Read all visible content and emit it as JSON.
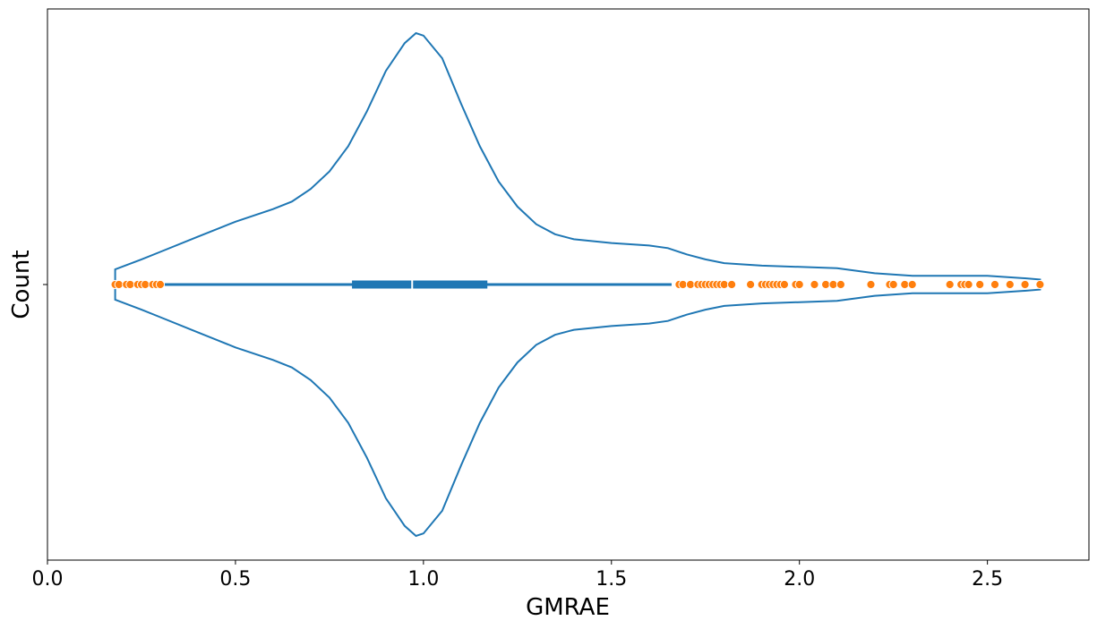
{
  "chart_data": {
    "type": "violin",
    "xlabel": "GMRAE",
    "ylabel": "Count",
    "xlim": [
      0.0,
      2.77
    ],
    "x_ticks": [
      0.0,
      0.5,
      1.0,
      1.5,
      2.0,
      2.5
    ],
    "x_tick_labels": [
      "0.0",
      "0.5",
      "1.0",
      "1.5",
      "2.0",
      "2.5"
    ],
    "grid": false,
    "colors": {
      "violin": "#1f77b4",
      "outliers": "#ff7f0e"
    },
    "violin": {
      "min": 0.18,
      "max": 2.64,
      "q1": 0.81,
      "median": 0.97,
      "q3": 1.17,
      "whisker_low": 0.18,
      "whisker_high": 1.66,
      "density": [
        [
          0.18,
          0.06
        ],
        [
          0.25,
          0.1
        ],
        [
          0.3,
          0.13
        ],
        [
          0.4,
          0.19
        ],
        [
          0.5,
          0.25
        ],
        [
          0.6,
          0.3
        ],
        [
          0.65,
          0.33
        ],
        [
          0.7,
          0.38
        ],
        [
          0.75,
          0.45
        ],
        [
          0.8,
          0.55
        ],
        [
          0.85,
          0.69
        ],
        [
          0.9,
          0.85
        ],
        [
          0.95,
          0.96
        ],
        [
          0.98,
          1.0
        ],
        [
          1.0,
          0.99
        ],
        [
          1.05,
          0.9
        ],
        [
          1.1,
          0.72
        ],
        [
          1.15,
          0.55
        ],
        [
          1.2,
          0.41
        ],
        [
          1.25,
          0.31
        ],
        [
          1.3,
          0.24
        ],
        [
          1.35,
          0.2
        ],
        [
          1.4,
          0.18
        ],
        [
          1.5,
          0.165
        ],
        [
          1.6,
          0.155
        ],
        [
          1.65,
          0.145
        ],
        [
          1.7,
          0.12
        ],
        [
          1.75,
          0.1
        ],
        [
          1.8,
          0.085
        ],
        [
          1.9,
          0.075
        ],
        [
          2.0,
          0.07
        ],
        [
          2.1,
          0.065
        ],
        [
          2.2,
          0.045
        ],
        [
          2.3,
          0.035
        ],
        [
          2.4,
          0.035
        ],
        [
          2.5,
          0.035
        ],
        [
          2.6,
          0.025
        ],
        [
          2.64,
          0.02
        ]
      ]
    },
    "outliers": [
      0.18,
      0.19,
      0.21,
      0.22,
      0.24,
      0.25,
      0.26,
      0.28,
      0.29,
      0.3,
      1.68,
      1.69,
      1.71,
      1.73,
      1.74,
      1.75,
      1.76,
      1.77,
      1.78,
      1.79,
      1.8,
      1.82,
      1.87,
      1.9,
      1.91,
      1.92,
      1.93,
      1.94,
      1.95,
      1.96,
      1.99,
      2.0,
      2.04,
      2.07,
      2.09,
      2.11,
      2.19,
      2.24,
      2.25,
      2.28,
      2.3,
      2.4,
      2.43,
      2.44,
      2.45,
      2.48,
      2.52,
      2.56,
      2.6,
      2.64
    ]
  }
}
